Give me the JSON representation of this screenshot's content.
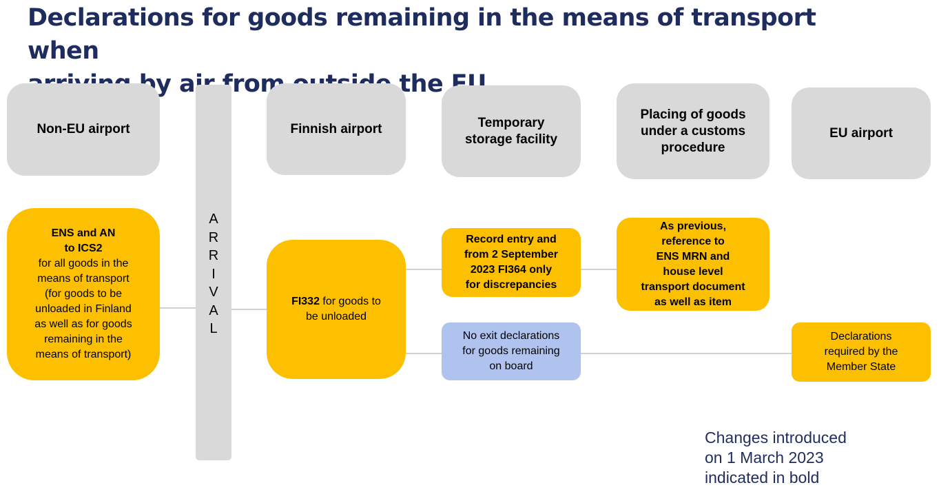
{
  "title": {
    "line1": "Declarations for goods remaining in the means of transport when",
    "line2": "arriving by air from outside the EU"
  },
  "headers": {
    "non_eu_airport": "Non-EU airport",
    "finnish_airport": "Finnish airport",
    "temporary_storage": [
      "Temporary",
      "storage facility"
    ],
    "placing_goods": [
      "Placing of goods",
      "under a customs",
      "procedure"
    ],
    "eu_airport": "EU airport"
  },
  "arrival_letters": [
    "A",
    "R",
    "R",
    "I",
    "V",
    "A",
    "L"
  ],
  "boxes": {
    "ens_an": {
      "bold_lines": [
        "ENS and AN",
        "to ICS2"
      ],
      "lines": [
        "for all goods in the",
        "means of transport",
        "(for goods to be",
        "unloaded in Finland",
        "as well as for goods",
        "remaining in the",
        "means of transport)"
      ]
    },
    "fi332": {
      "bold": "FI332",
      "text": " for goods to",
      "line2": "be unloaded"
    },
    "record_entry": {
      "bold_lines": [
        "Record entry and",
        "from 2 September",
        "2023 FI364 only",
        "for discrepancies"
      ]
    },
    "as_previous": {
      "bold_lines": [
        "As previous,",
        "reference to",
        "ENS MRN and",
        "house level",
        "transport document",
        "as well as item"
      ]
    },
    "no_exit": {
      "lines": [
        "No exit declarations",
        "for goods remaining",
        "on board"
      ]
    },
    "member_state": {
      "lines": [
        "Declarations",
        "required by the",
        "Member State"
      ]
    }
  },
  "note": [
    "Changes introduced",
    "on 1 March 2023",
    "indicated in bold"
  ],
  "colors": {
    "title": "#1f2d5e",
    "grey_box": "#d9d9d9",
    "yellow_box": "#fdc000",
    "blue_box": "#b0c2ee",
    "connector": "#d0d0d0"
  }
}
